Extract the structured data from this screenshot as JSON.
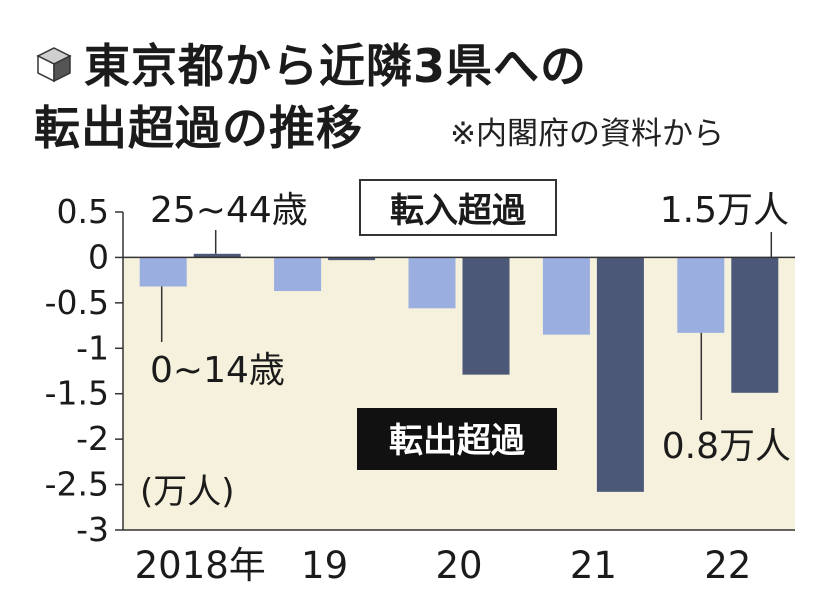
{
  "title": {
    "line1": "東京都から近隣3県への",
    "line2": "転出超過の推移",
    "note": "※内閣府の資料から"
  },
  "colors": {
    "plot_bg": "#f6f1dc",
    "series_0_14": "#9aaee0",
    "series_25_44": "#4b5878",
    "text": "#1b1b1b"
  },
  "chart_data": {
    "type": "bar",
    "title": "東京都から近隣3県への転出超過の推移",
    "categories": [
      "2018年",
      "19",
      "20",
      "21",
      "22"
    ],
    "series": [
      {
        "name": "0~14歳",
        "values": [
          -0.32,
          -0.37,
          -0.56,
          -0.85,
          -0.83
        ]
      },
      {
        "name": "25~44歳",
        "values": [
          0.04,
          -0.03,
          -1.29,
          -2.58,
          -1.49
        ]
      }
    ],
    "ylim": [
      -3,
      0.5
    ],
    "yticks": [
      0.5,
      0,
      -0.5,
      -1,
      -1.5,
      -2,
      -2.5,
      -3
    ],
    "ytick_labels": [
      "0.5",
      "0",
      "-0.5",
      "-1",
      "-1.5",
      "-2",
      "-2.5",
      "-3"
    ],
    "unit_label": "(万人)",
    "annotations": {
      "series_0_14_label": "0~14歳",
      "series_25_44_label": "25~44歳",
      "inflow_label": "転入超過",
      "outflow_label": "転出超過",
      "callout_2022_25_44": "1.5万人",
      "callout_2022_0_14": "0.8万人"
    }
  }
}
